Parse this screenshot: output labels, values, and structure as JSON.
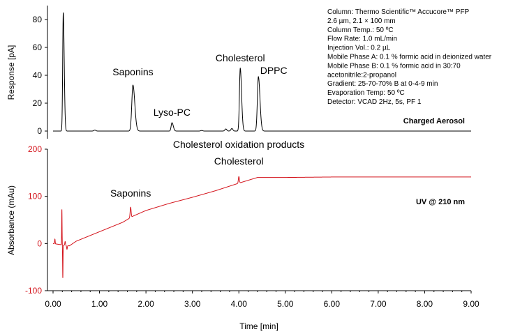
{
  "chart_data": [
    {
      "type": "line",
      "panel": "top",
      "detector_label": "Charged Aerosol",
      "ylabel": "Response [pA]",
      "xlim": [
        0,
        9
      ],
      "ylim": [
        -5,
        90
      ],
      "yticks": [
        0,
        20,
        40,
        60,
        80
      ],
      "y_tick_labels": [
        "0",
        "20",
        "40",
        "60",
        "80"
      ],
      "color": "#000000",
      "peaks": [
        {
          "name": "",
          "x": 0.22,
          "y": 85,
          "width": 0.018
        },
        {
          "name": "Saponins",
          "x": 1.72,
          "y": 33,
          "width": 0.035
        },
        {
          "name": "Lyso-PC",
          "x": 2.56,
          "y": 6,
          "width": 0.025
        },
        {
          "name": "Cholesterol",
          "x": 4.03,
          "y": 45,
          "width": 0.025
        },
        {
          "name": "DPPC",
          "x": 4.42,
          "y": 39,
          "width": 0.03
        }
      ],
      "minor_peaks": [
        {
          "x": 0.9,
          "y": 0.7
        },
        {
          "x": 3.72,
          "y": 1.5
        },
        {
          "x": 3.85,
          "y": 1.8
        },
        {
          "x": 3.2,
          "y": 0.4
        }
      ],
      "annotations": [
        {
          "text": "Saponins",
          "x": 1.72,
          "y": 33
        },
        {
          "text": "Lyso-PC",
          "x": 2.56,
          "y": 6
        },
        {
          "text": "Cholesterol",
          "x": 4.03,
          "y": 45
        },
        {
          "text": "DPPC",
          "x": 4.42,
          "y": 39
        }
      ]
    },
    {
      "type": "line",
      "panel": "bottom",
      "detector_label": "UV @ 210 nm",
      "ylabel": "Absorbance (mAu)",
      "xlabel": "Time [min]",
      "title": "Cholesterol oxidation products",
      "xlim": [
        0,
        9
      ],
      "ylim": [
        -100,
        200
      ],
      "yticks": [
        -100,
        0,
        100,
        200
      ],
      "y_tick_labels": [
        "-100",
        "0",
        "100",
        "200"
      ],
      "xticks": [
        0,
        1,
        2,
        3,
        4,
        5,
        6,
        7,
        8,
        9
      ],
      "x_tick_labels": [
        "0.00",
        "1.00",
        "2.00",
        "3.00",
        "4.00",
        "5.00",
        "6.00",
        "7.00",
        "8.00",
        "9.00"
      ],
      "color": "#d4141c",
      "baseline": [
        {
          "x": 0.0,
          "y": 0
        },
        {
          "x": 0.35,
          "y": -5
        },
        {
          "x": 0.5,
          "y": 5
        },
        {
          "x": 1.0,
          "y": 25
        },
        {
          "x": 1.5,
          "y": 45
        },
        {
          "x": 1.72,
          "y": 58
        },
        {
          "x": 2.0,
          "y": 70
        },
        {
          "x": 2.5,
          "y": 85
        },
        {
          "x": 3.0,
          "y": 98
        },
        {
          "x": 3.5,
          "y": 112
        },
        {
          "x": 4.0,
          "y": 128
        },
        {
          "x": 4.4,
          "y": 140
        },
        {
          "x": 5.0,
          "y": 140
        },
        {
          "x": 6.0,
          "y": 141
        },
        {
          "x": 7.0,
          "y": 141
        },
        {
          "x": 9.0,
          "y": 141
        }
      ],
      "peaks": [
        {
          "name": "Saponins",
          "x": 1.67,
          "y": 82
        },
        {
          "name": "Cholesterol",
          "x": 4.0,
          "y": 150
        }
      ],
      "annotations": [
        {
          "text": "Saponins",
          "x": 1.67,
          "y": 82
        },
        {
          "text": "Cholesterol",
          "x": 4.0,
          "y": 150
        }
      ]
    }
  ],
  "method_info": [
    "Column: Thermo Scientific™ Accucore™ PFP",
    "2.6 µm, 2.1 × 100 mm",
    "Column Temp.: 50 ºC",
    "Flow Rate: 1.0 mL/min",
    "Injection Vol.: 0.2 µL",
    "Mobile Phase A: 0.1 % formic acid in deionized water",
    "Mobile Phase B: 0.1 % formic acid in 30:70",
    "acetonitrile:2-propanol",
    "Gradient: 25-70-70% B at 0-4-9 min",
    "Evaporation Temp: 50 ºC",
    "Detector: VCAD 2Hz, 5s, PF 1"
  ]
}
